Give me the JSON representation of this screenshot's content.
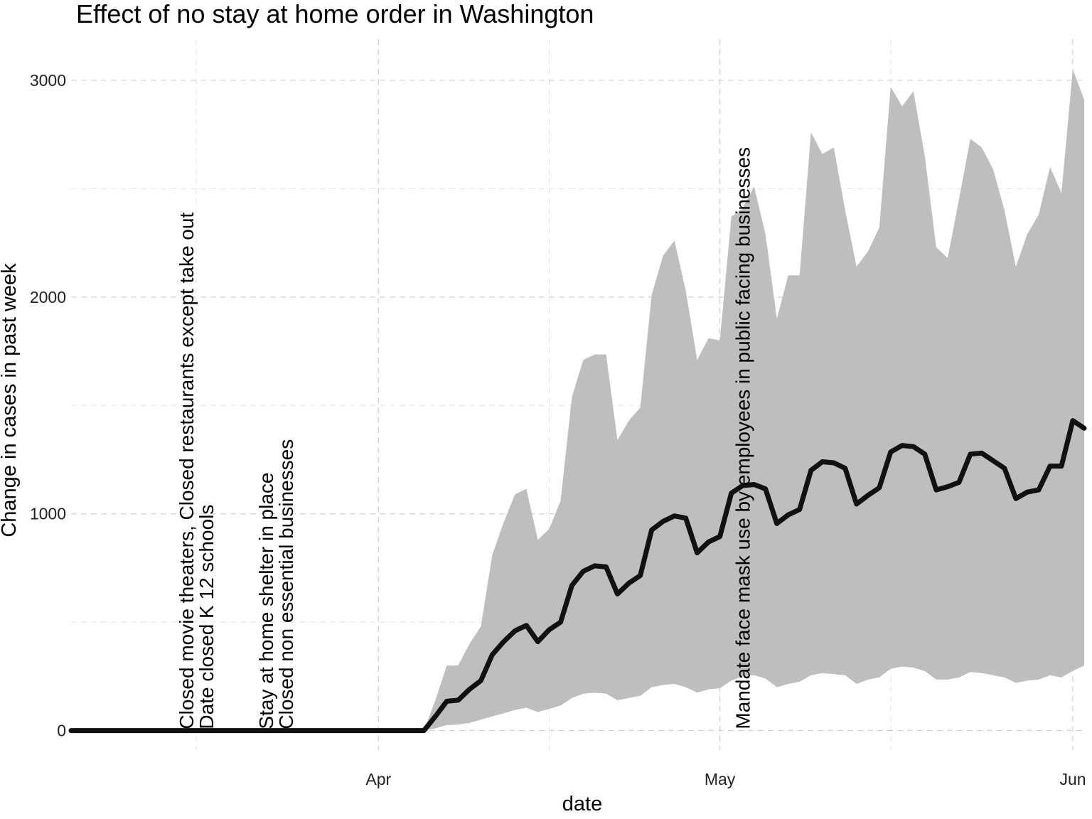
{
  "chart_data": {
    "type": "area",
    "title": "Effect of no stay at home order in Washington",
    "xlabel": "date",
    "ylabel": "Change in cases in past week",
    "x_axis": {
      "type": "date",
      "range": [
        "2020-03-05",
        "2020-06-02"
      ],
      "tick_labels": [
        {
          "date": "2020-04-01",
          "label": "Apr"
        },
        {
          "date": "2020-05-01",
          "label": "May"
        },
        {
          "date": "2020-06-01",
          "label": "Jun"
        }
      ],
      "minor_ticks": [
        "2020-03-16",
        "2020-04-16",
        "2020-05-16"
      ]
    },
    "y_axis": {
      "range": [
        -90,
        3190
      ],
      "ticks": [
        0,
        1000,
        2000,
        3000
      ],
      "minor_ticks": [
        500,
        1500,
        2500
      ]
    },
    "grid": true,
    "legend": "none",
    "colors": {
      "line": "#111111",
      "band": "#bebebe"
    },
    "series": [
      {
        "kind": "line",
        "x": [
          "2020-03-05",
          "2020-03-06",
          "2020-03-07",
          "2020-03-08",
          "2020-03-09",
          "2020-03-10",
          "2020-03-11",
          "2020-03-12",
          "2020-03-13",
          "2020-03-14",
          "2020-03-15",
          "2020-03-16",
          "2020-03-17",
          "2020-03-18",
          "2020-03-19",
          "2020-03-20",
          "2020-03-21",
          "2020-03-22",
          "2020-03-23",
          "2020-03-24",
          "2020-03-25",
          "2020-03-26",
          "2020-03-27",
          "2020-03-28",
          "2020-03-29",
          "2020-03-30",
          "2020-03-31",
          "2020-04-01",
          "2020-04-02",
          "2020-04-03",
          "2020-04-04",
          "2020-04-05",
          "2020-04-06",
          "2020-04-07",
          "2020-04-08",
          "2020-04-09",
          "2020-04-10",
          "2020-04-11",
          "2020-04-12",
          "2020-04-13",
          "2020-04-14",
          "2020-04-15",
          "2020-04-16",
          "2020-04-17",
          "2020-04-18",
          "2020-04-19",
          "2020-04-20",
          "2020-04-21",
          "2020-04-22",
          "2020-04-23",
          "2020-04-24",
          "2020-04-25",
          "2020-04-26",
          "2020-04-27",
          "2020-04-28",
          "2020-04-29",
          "2020-04-30",
          "2020-05-01",
          "2020-05-02",
          "2020-05-03",
          "2020-05-04",
          "2020-05-05",
          "2020-05-06",
          "2020-05-07",
          "2020-05-08",
          "2020-05-09",
          "2020-05-10",
          "2020-05-11",
          "2020-05-12",
          "2020-05-13",
          "2020-05-14",
          "2020-05-15",
          "2020-05-16",
          "2020-05-17",
          "2020-05-18",
          "2020-05-19",
          "2020-05-20",
          "2020-05-21",
          "2020-05-22",
          "2020-05-23",
          "2020-05-24",
          "2020-05-25",
          "2020-05-26",
          "2020-05-27",
          "2020-05-28",
          "2020-05-29",
          "2020-05-30",
          "2020-05-31",
          "2020-06-01",
          "2020-06-02"
        ],
        "values": [
          0,
          0,
          0,
          0,
          0,
          0,
          0,
          0,
          0,
          0,
          0,
          0,
          0,
          0,
          0,
          0,
          0,
          0,
          0,
          0,
          0,
          0,
          0,
          0,
          0,
          0,
          0,
          0,
          0,
          0,
          0,
          0,
          65,
          135,
          140,
          190,
          230,
          350,
          410,
          460,
          485,
          410,
          465,
          500,
          670,
          735,
          760,
          755,
          630,
          680,
          715,
          925,
          965,
          990,
          980,
          820,
          870,
          895,
          1095,
          1130,
          1135,
          1115,
          955,
          995,
          1020,
          1200,
          1240,
          1235,
          1210,
          1045,
          1085,
          1120,
          1285,
          1315,
          1310,
          1275,
          1110,
          1125,
          1145,
          1275,
          1280,
          1245,
          1210,
          1070,
          1100,
          1110,
          1220,
          1220,
          1430,
          1395
        ]
      },
      {
        "kind": "band_upper",
        "values": [
          0,
          0,
          0,
          0,
          0,
          0,
          0,
          0,
          0,
          0,
          0,
          0,
          0,
          0,
          0,
          0,
          0,
          0,
          0,
          0,
          0,
          0,
          0,
          0,
          0,
          0,
          0,
          0,
          0,
          0,
          0,
          0,
          140,
          300,
          300,
          400,
          480,
          810,
          960,
          1090,
          1115,
          880,
          930,
          1060,
          1540,
          1710,
          1735,
          1735,
          1340,
          1430,
          1490,
          2010,
          2190,
          2260,
          2030,
          1710,
          1810,
          1800,
          2370,
          2410,
          2510,
          2290,
          1900,
          2100,
          2100,
          2760,
          2660,
          2690,
          2400,
          2140,
          2210,
          2320,
          2970,
          2880,
          2950,
          2650,
          2230,
          2180,
          2450,
          2730,
          2690,
          2590,
          2400,
          2140,
          2290,
          2380,
          2600,
          2480,
          3050,
          2910
        ]
      },
      {
        "kind": "band_lower",
        "values": [
          0,
          0,
          0,
          0,
          0,
          0,
          0,
          0,
          0,
          0,
          0,
          0,
          0,
          0,
          0,
          0,
          0,
          0,
          0,
          0,
          0,
          0,
          0,
          0,
          0,
          0,
          0,
          0,
          0,
          0,
          0,
          0,
          10,
          25,
          27,
          35,
          50,
          65,
          80,
          95,
          105,
          85,
          100,
          115,
          150,
          170,
          175,
          170,
          140,
          150,
          160,
          200,
          210,
          215,
          200,
          175,
          190,
          195,
          230,
          250,
          255,
          240,
          200,
          215,
          225,
          255,
          265,
          260,
          255,
          215,
          235,
          245,
          285,
          295,
          290,
          275,
          235,
          235,
          245,
          270,
          265,
          255,
          245,
          220,
          230,
          235,
          255,
          245,
          275,
          300
        ]
      }
    ],
    "annotations": [
      {
        "date": "2020-03-16",
        "lines": [
          "Closed movie theaters, Closed restaurants except take out",
          "Date closed K 12 schools"
        ]
      },
      {
        "date": "2020-03-23",
        "lines": [
          "Stay at home  shelter in place",
          "Closed non essential businesses"
        ]
      },
      {
        "date": "2020-05-03",
        "lines": [
          "Mandate face mask use by employees in public facing businesses"
        ]
      }
    ]
  }
}
